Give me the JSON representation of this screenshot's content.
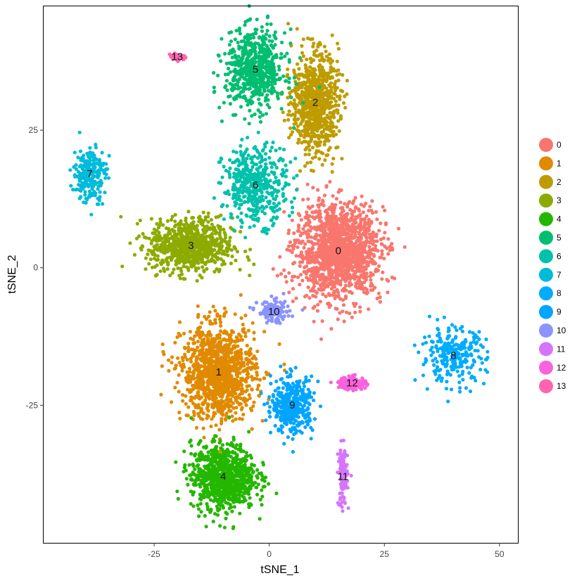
{
  "chart_data": {
    "type": "scatter",
    "xlabel": "tSNE_1",
    "ylabel": "tSNE_2",
    "xlim": [
      -49,
      54
    ],
    "ylim": [
      -50,
      47.5
    ],
    "xticks": [
      -25,
      0,
      25,
      50
    ],
    "yticks": [
      -25,
      0,
      25
    ],
    "grid": false,
    "legend_position": "right",
    "clusters": [
      {
        "name": "0",
        "label": "0",
        "color": "#F8766D",
        "center": [
          15,
          3
        ],
        "spread": [
          9,
          8.5
        ],
        "count": 1500
      },
      {
        "name": "1",
        "label": "1",
        "color": "#E18A00",
        "center": [
          -11,
          -19
        ],
        "spread": [
          8,
          8.5
        ],
        "count": 1150
      },
      {
        "name": "2",
        "label": "2",
        "color": "#BE9C00",
        "center": [
          10,
          30
        ],
        "spread": [
          5,
          9
        ],
        "count": 800
      },
      {
        "name": "3",
        "label": "3",
        "color": "#8CAB00",
        "center": [
          -17,
          4
        ],
        "spread": [
          9,
          5
        ],
        "count": 760
      },
      {
        "name": "4",
        "label": "4",
        "color": "#24B700",
        "center": [
          -10,
          -38
        ],
        "spread": [
          7,
          6
        ],
        "count": 880
      },
      {
        "name": "5",
        "label": "5",
        "color": "#00BE70",
        "center": [
          -3,
          36
        ],
        "spread": [
          6.5,
          7
        ],
        "count": 650
      },
      {
        "name": "6",
        "label": "6",
        "color": "#00C1AB",
        "center": [
          -3,
          15
        ],
        "spread": [
          7,
          7
        ],
        "count": 450
      },
      {
        "name": "7",
        "label": "7",
        "color": "#00BBDA",
        "center": [
          -39,
          17
        ],
        "spread": [
          3.5,
          5
        ],
        "count": 240
      },
      {
        "name": "8",
        "label": "8",
        "color": "#00ACFC",
        "center": [
          40,
          -16
        ],
        "spread": [
          7,
          5
        ],
        "count": 260
      },
      {
        "name": "9",
        "label": "9",
        "color": "#00A5FF",
        "center": [
          5,
          -25
        ],
        "spread": [
          4.5,
          5
        ],
        "count": 380
      },
      {
        "name": "10",
        "label": "10",
        "color": "#8B93FF",
        "center": [
          1,
          -8
        ],
        "spread": [
          3.5,
          2
        ],
        "count": 120
      },
      {
        "name": "11",
        "label": "11",
        "color": "#D575FE",
        "center": [
          16,
          -38
        ],
        "spread": [
          1,
          5.5
        ],
        "count": 120
      },
      {
        "name": "12",
        "label": "12",
        "color": "#F962DD",
        "center": [
          18,
          -21
        ],
        "spread": [
          3,
          1.2
        ],
        "count": 140
      },
      {
        "name": "13",
        "label": "13",
        "color": "#FF65AC",
        "center": [
          -20,
          38.3
        ],
        "spread": [
          2,
          0.8
        ],
        "count": 40
      }
    ]
  }
}
